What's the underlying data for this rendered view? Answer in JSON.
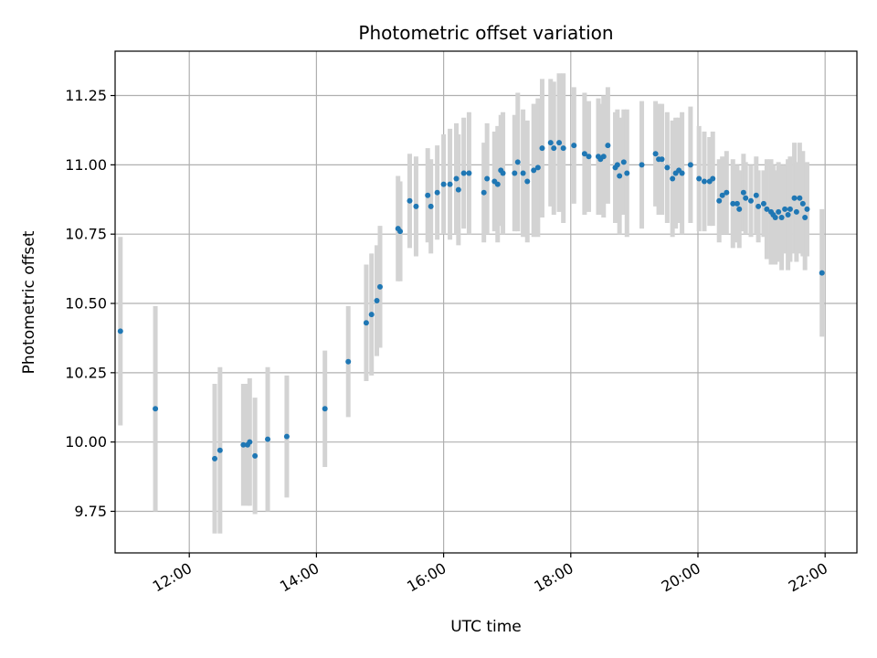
{
  "chart_data": {
    "type": "scatter",
    "title": "Photometric offset variation",
    "xlabel": "UTC time",
    "ylabel": "Photometric offset",
    "xlim": [
      "10:50",
      "22:30"
    ],
    "ylim": [
      9.6,
      11.41
    ],
    "grid": true,
    "colors": {
      "point": "#1f77b4",
      "errorbar": "#d3d3d3",
      "grid": "#b0b0b0",
      "axes": "#000000"
    },
    "x_ticks": [
      "12:00",
      "14:00",
      "16:00",
      "18:00",
      "20:00",
      "22:00"
    ],
    "y_ticks": [
      "9.75",
      "10.00",
      "10.25",
      "10.50",
      "10.75",
      "11.00",
      "11.25"
    ],
    "series": [
      {
        "x": [
          "10:55",
          "11:28",
          "12:24",
          "12:29",
          "12:51",
          "12:55",
          "12:57",
          "13:02",
          "13:14",
          "13:32",
          "14:08",
          "14:30",
          "14:47",
          "14:52",
          "14:57",
          "15:00",
          "15:17",
          "15:19",
          "15:28",
          "15:34",
          "15:45",
          "15:48",
          "15:54",
          "16:00",
          "16:06",
          "16:12",
          "16:14",
          "16:19",
          "16:24",
          "16:38",
          "16:41",
          "16:48",
          "16:51",
          "16:54",
          "16:56",
          "17:07",
          "17:10",
          "17:15",
          "17:19",
          "17:25",
          "17:29",
          "17:33",
          "17:41",
          "17:44",
          "17:49",
          "17:53",
          "18:03",
          "18:13",
          "18:17",
          "18:26",
          "18:28",
          "18:31",
          "18:35",
          "18:42",
          "18:44",
          "18:46",
          "18:50",
          "18:53",
          "19:07",
          "19:20",
          "19:23",
          "19:26",
          "19:31",
          "19:36",
          "19:39",
          "19:42",
          "19:45",
          "19:53",
          "20:01",
          "20:06",
          "20:11",
          "20:14",
          "20:20",
          "20:23",
          "20:27",
          "20:33",
          "20:37",
          "20:39",
          "20:43",
          "20:45",
          "20:50",
          "20:55",
          "20:57",
          "21:02",
          "21:05",
          "21:09",
          "21:11",
          "21:13",
          "21:16",
          "21:19",
          "21:22",
          "21:25",
          "21:27",
          "21:31",
          "21:33",
          "21:36",
          "21:39",
          "21:41",
          "21:43",
          "21:57"
        ],
        "y": [
          10.4,
          10.12,
          9.94,
          9.97,
          9.99,
          9.99,
          10.0,
          9.95,
          10.01,
          10.02,
          10.12,
          10.29,
          10.43,
          10.46,
          10.51,
          10.56,
          10.77,
          10.76,
          10.87,
          10.85,
          10.89,
          10.85,
          10.9,
          10.93,
          10.93,
          10.95,
          10.91,
          10.97,
          10.97,
          10.9,
          10.95,
          10.94,
          10.93,
          10.98,
          10.97,
          10.97,
          11.01,
          10.97,
          10.94,
          10.98,
          10.99,
          11.06,
          11.08,
          11.06,
          11.08,
          11.06,
          11.07,
          11.04,
          11.03,
          11.03,
          11.02,
          11.03,
          11.07,
          10.99,
          11.0,
          10.96,
          11.01,
          10.97,
          11.0,
          11.04,
          11.02,
          11.02,
          10.99,
          10.95,
          10.97,
          10.98,
          10.97,
          11.0,
          10.95,
          10.94,
          10.94,
          10.95,
          10.87,
          10.89,
          10.9,
          10.86,
          10.86,
          10.84,
          10.9,
          10.88,
          10.87,
          10.89,
          10.85,
          10.86,
          10.84,
          10.83,
          10.82,
          10.81,
          10.83,
          10.81,
          10.84,
          10.82,
          10.84,
          10.88,
          10.83,
          10.88,
          10.86,
          10.81,
          10.84,
          10.61
        ],
        "yerr": [
          0.34,
          0.37,
          0.27,
          0.3,
          0.22,
          0.22,
          0.23,
          0.21,
          0.26,
          0.22,
          0.21,
          0.2,
          0.21,
          0.22,
          0.2,
          0.22,
          0.19,
          0.18,
          0.17,
          0.18,
          0.17,
          0.17,
          0.17,
          0.18,
          0.2,
          0.2,
          0.2,
          0.2,
          0.22,
          0.18,
          0.2,
          0.18,
          0.21,
          0.2,
          0.22,
          0.21,
          0.25,
          0.23,
          0.22,
          0.24,
          0.25,
          0.25,
          0.23,
          0.24,
          0.25,
          0.27,
          0.21,
          0.22,
          0.2,
          0.21,
          0.2,
          0.22,
          0.21,
          0.2,
          0.2,
          0.21,
          0.19,
          0.23,
          0.23,
          0.19,
          0.2,
          0.2,
          0.2,
          0.21,
          0.2,
          0.19,
          0.22,
          0.21,
          0.19,
          0.18,
          0.16,
          0.17,
          0.15,
          0.14,
          0.15,
          0.16,
          0.14,
          0.14,
          0.14,
          0.13,
          0.13,
          0.14,
          0.13,
          0.12,
          0.18,
          0.19,
          0.18,
          0.17,
          0.18,
          0.19,
          0.16,
          0.2,
          0.19,
          0.2,
          0.18,
          0.2,
          0.19,
          0.19,
          0.17,
          0.23
        ]
      }
    ]
  }
}
